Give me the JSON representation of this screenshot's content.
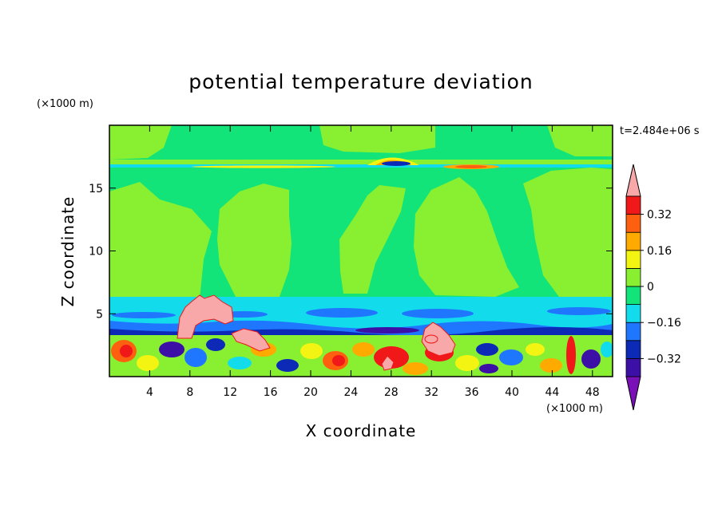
{
  "chart_data": {
    "type": "heatmap",
    "title": "potential temperature deviation",
    "xlabel": "X coordinate",
    "ylabel": "Z coordinate",
    "x_unit": "(×1000 m)",
    "y_unit": "(×1000 m)",
    "time_label": "t=2.484e+06 s",
    "xlim": [
      0,
      50
    ],
    "ylim": [
      0,
      20
    ],
    "x_ticks": [
      4,
      8,
      12,
      16,
      20,
      24,
      28,
      32,
      36,
      40,
      44,
      48
    ],
    "y_ticks": [
      5,
      10,
      15
    ],
    "grid": false,
    "colorbar": {
      "tick_values": [
        0.32,
        0.16,
        0,
        -0.16,
        -0.32
      ],
      "tick_labels": [
        "0.32",
        "0.16",
        "0",
        "−0.16",
        "−0.32"
      ],
      "levels": [
        -0.4,
        -0.32,
        -0.24,
        -0.16,
        -0.08,
        0.0,
        0.08,
        0.16,
        0.24,
        0.32,
        0.4
      ],
      "colors": [
        "#7a10b8",
        "#3c10a6",
        "#0c2ab6",
        "#1f76ff",
        "#12dcec",
        "#12e47a",
        "#88f030",
        "#f4f412",
        "#ffaa00",
        "#ff6010",
        "#f01818",
        "#f8a8a8"
      ]
    },
    "colors": {
      "far_below": "#7a10b8",
      "strong_negative": "#3c10a6",
      "negative": "#1f76ff",
      "slight_negative": "#12dcec",
      "near_zero": "#12e47a",
      "slight_positive": "#88f030",
      "positive": "#f4f412",
      "strong_positive": "#f01818",
      "far_above": "#f8a8a8"
    }
  }
}
